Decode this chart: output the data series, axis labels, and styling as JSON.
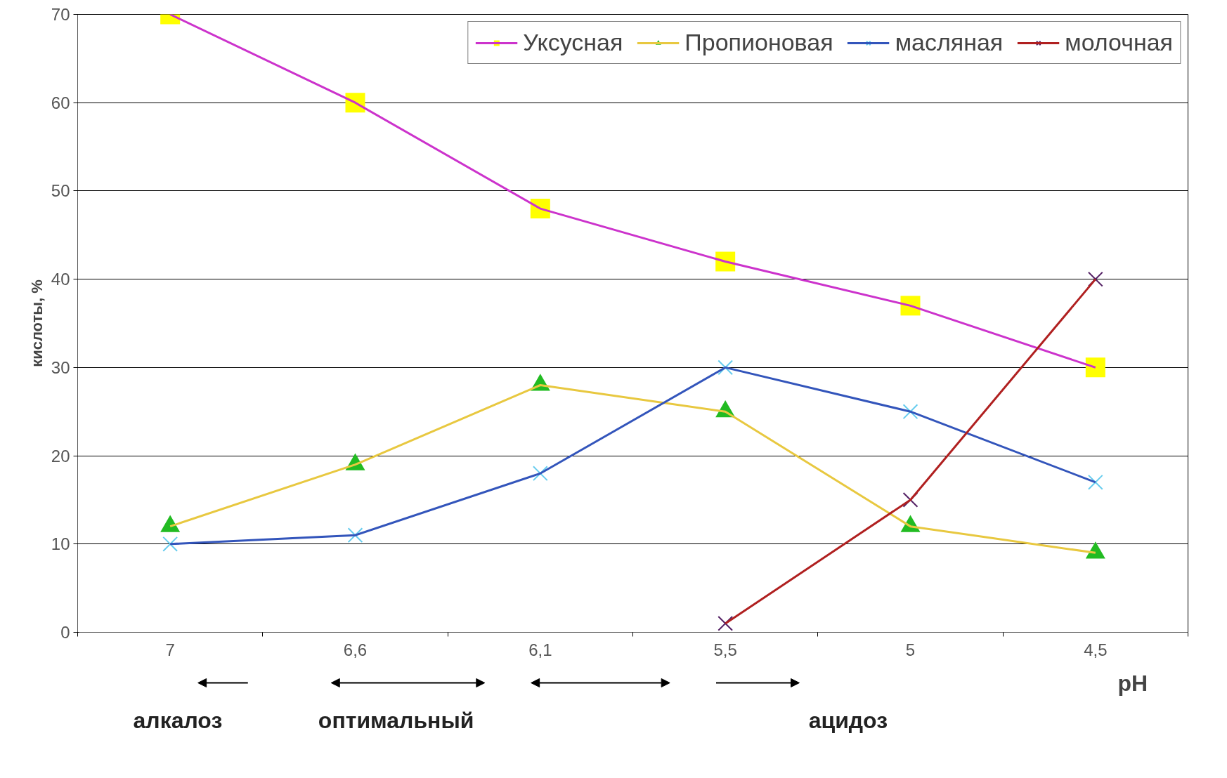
{
  "chart_data": {
    "type": "line",
    "categories": [
      "7",
      "6,6",
      "6,1",
      "5,5",
      "5",
      "4,5"
    ],
    "xlabel": "pH",
    "ylabel": "кислоты, %",
    "ylim": [
      0,
      70
    ],
    "yticks": [
      0,
      10,
      20,
      30,
      40,
      50,
      60,
      70
    ],
    "grid": "y",
    "legend": "top right",
    "series": [
      {
        "name": "Уксусная",
        "color": "#cc33cc",
        "colors": [
          "#ffff00",
          "#ffff00",
          "#ffff00",
          "#ffff00",
          "#ffff00",
          "#ffff00"
        ],
        "marker": "square",
        "values": [
          70,
          60,
          48,
          42,
          37,
          30
        ]
      },
      {
        "name": "Пропионовая",
        "color": "#e8c840",
        "colors": [
          "#22bb22",
          "#22bb22",
          "#22bb22",
          "#22bb22",
          "#22bb22",
          "#22bb22"
        ],
        "marker": "triangle",
        "values": [
          12,
          19,
          28,
          25,
          12,
          9
        ]
      },
      {
        "name": "масляная",
        "color": "#3355bb",
        "colors": [
          "#66ccee",
          "#66ccee",
          "#66ccee",
          "#66ccee",
          "#66ccee",
          "#66ccee"
        ],
        "marker": "cross",
        "values": [
          10,
          11,
          18,
          30,
          25,
          17
        ]
      },
      {
        "name": "молочная",
        "color": "#b02020",
        "colors": [
          "#552266",
          "#552266",
          "#552266",
          "#552266",
          "#552266",
          "#552266"
        ],
        "marker": "cross",
        "values": [
          null,
          null,
          null,
          1,
          15,
          40
        ]
      }
    ],
    "annotations": [
      "алкалоз",
      "оптимальный",
      "ацидоз"
    ]
  }
}
